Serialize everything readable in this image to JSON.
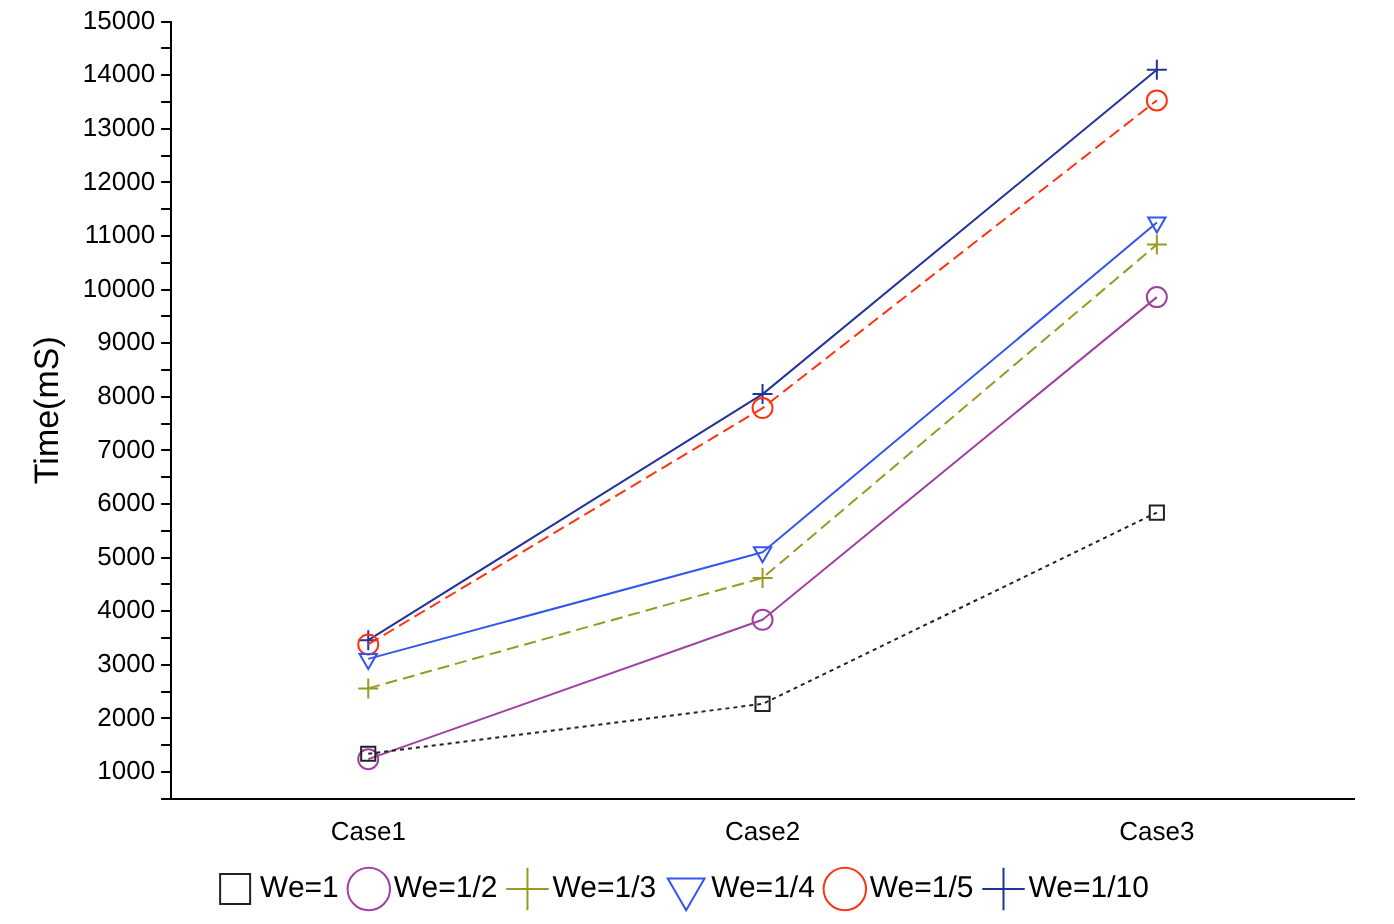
{
  "chart_data": {
    "type": "line",
    "ylabel": "Time(mS)",
    "categories": [
      "Case1",
      "Case2",
      "Case3"
    ],
    "ylim": [
      500,
      15000
    ],
    "yticks": [
      {
        "value": 500,
        "label": null
      },
      1000,
      {
        "value": 1500,
        "label": null
      },
      2000,
      {
        "value": 2500,
        "label": null
      },
      3000,
      {
        "value": 3500,
        "label": null
      },
      4000,
      {
        "value": 4500,
        "label": null
      },
      5000,
      {
        "value": 5500,
        "label": null
      },
      6000,
      {
        "value": 6500,
        "label": null
      },
      7000,
      {
        "value": 7500,
        "label": null
      },
      8000,
      {
        "value": 8500,
        "label": null
      },
      9000,
      {
        "value": 9500,
        "label": null
      },
      10000,
      {
        "value": 10500,
        "label": null
      },
      11000,
      {
        "value": 11500,
        "label": null
      },
      12000,
      {
        "value": 12500,
        "label": null
      },
      13000,
      {
        "value": 13500,
        "label": null
      },
      14000,
      {
        "value": 14500,
        "label": null
      },
      15000
    ],
    "grid": false,
    "legend": "bottom",
    "series": [
      {
        "name": "We=1",
        "color": "#222222",
        "marker": "square",
        "line_style": "dotted",
        "values": [
          1340,
          2270,
          5840
        ]
      },
      {
        "name": "We=1/2",
        "color": "#a040a0",
        "marker": "circle",
        "line_style": "solid",
        "values": [
          1240,
          3840,
          9860
        ]
      },
      {
        "name": "We=1/3",
        "color": "#999922",
        "marker": "cross",
        "line_style": "dashed",
        "values": [
          2560,
          4620,
          10840
        ]
      },
      {
        "name": "We=1/4",
        "color": "#3355ee",
        "marker": "triangle",
        "line_style": "solid",
        "values": [
          3110,
          5100,
          11250
        ]
      },
      {
        "name": "We=1/5",
        "color": "#ff3311",
        "marker": "circle",
        "line_style": "dashed",
        "values": [
          3380,
          7790,
          13530
        ]
      },
      {
        "name": "We=1/10",
        "color": "#223399",
        "marker": "cross",
        "line_style": "solid",
        "values": [
          3460,
          8050,
          14100
        ]
      }
    ]
  }
}
